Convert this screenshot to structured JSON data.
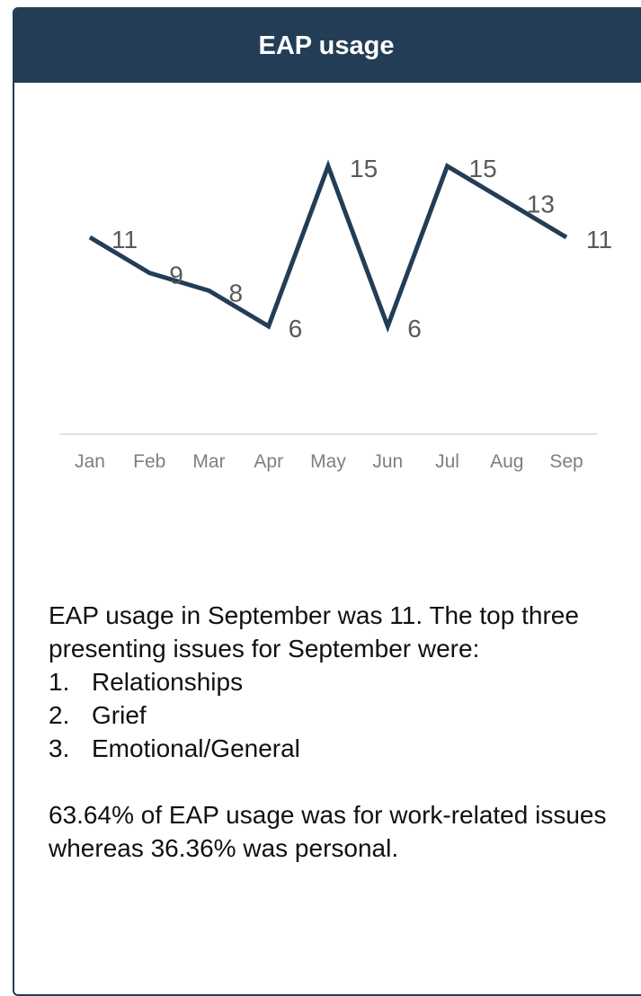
{
  "card": {
    "title": "EAP usage"
  },
  "chart_data": {
    "type": "line",
    "title": "",
    "xlabel": "",
    "ylabel": "",
    "categories": [
      "Jan",
      "Feb",
      "Mar",
      "Apr",
      "May",
      "Jun",
      "Jul",
      "Aug",
      "Sep"
    ],
    "series": [
      {
        "values": [
          11,
          9,
          8,
          6,
          15,
          6,
          15,
          13,
          11
        ]
      }
    ],
    "ylim": [
      0,
      17
    ],
    "grid": false,
    "line_color": "#233d57",
    "data_labels": true
  },
  "summary": {
    "intro": "EAP usage in September was 11. The top three presenting issues for September were:",
    "issues": [
      {
        "num": "1.",
        "text": "Relationships"
      },
      {
        "num": "2.",
        "text": "Grief"
      },
      {
        "num": "3.",
        "text": "Emotional/General"
      }
    ],
    "split": "63.64% of EAP usage was for work-related issues whereas 36.36% was personal."
  },
  "colors": {
    "header_bg": "#233d57",
    "header_text": "#ffffff",
    "axis_line": "#d9d9d9",
    "tick_text": "#7f7f7f",
    "label_text": "#595959"
  }
}
